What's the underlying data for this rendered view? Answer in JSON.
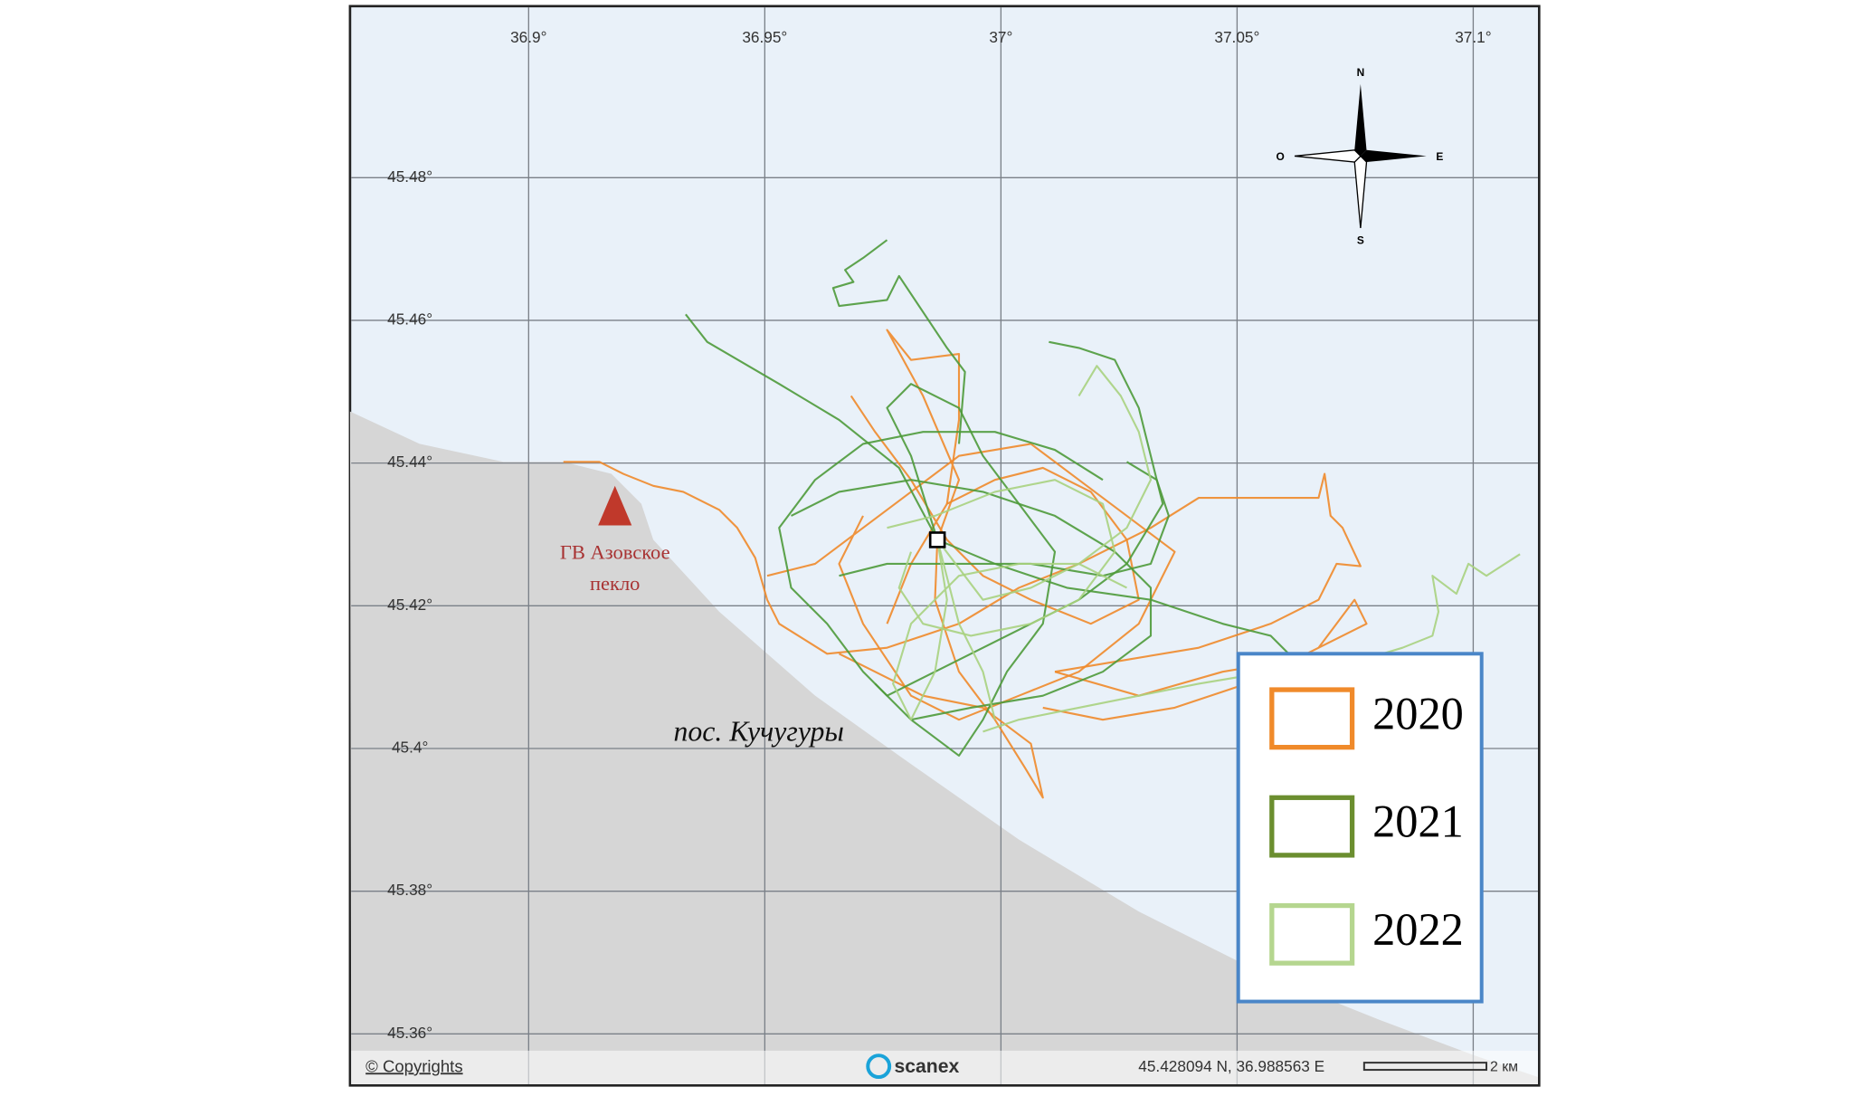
{
  "map": {
    "lon_ticks": [
      {
        "value": 36.9,
        "label": "36.9°"
      },
      {
        "value": 36.95,
        "label": "36.95°"
      },
      {
        "value": 37,
        "label": "37°"
      },
      {
        "value": 37.05,
        "label": "37.05°"
      },
      {
        "value": 37.1,
        "label": "37.1°"
      }
    ],
    "lat_ticks": [
      {
        "value": 45.48,
        "label": "45.48°"
      },
      {
        "value": 45.46,
        "label": "45.46°"
      },
      {
        "value": 45.44,
        "label": "45.44°"
      },
      {
        "value": 45.42,
        "label": "45.42°"
      },
      {
        "value": 45.4,
        "label": "45.4°"
      },
      {
        "value": 45.38,
        "label": "45.38°"
      },
      {
        "value": 45.36,
        "label": "45.36°"
      }
    ],
    "compass": {
      "north": "N",
      "east": "E",
      "south": "S",
      "west": "O"
    },
    "station": [
      "ГВ Азовское",
      "пекло"
    ],
    "settlement": "пос. Кучугуры",
    "legend": [
      "2020",
      "2021",
      "2022"
    ],
    "footer": {
      "copyright": "© Copyrights",
      "brand": "scanex",
      "coordinates": "45.428094 N, 36.988563 E",
      "scale": "2 км"
    }
  }
}
